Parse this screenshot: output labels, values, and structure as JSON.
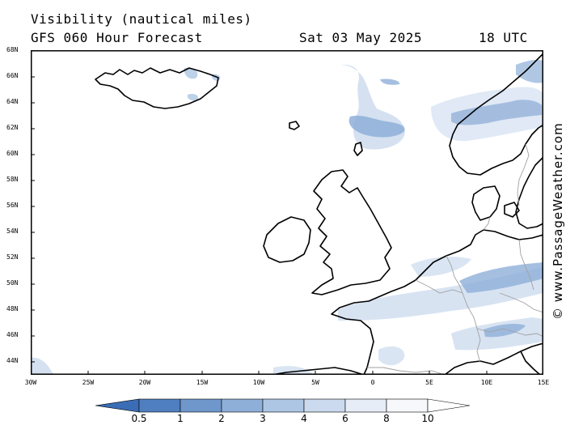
{
  "header": {
    "title": "Visibility (nautical miles)",
    "model": "GFS 060 Hour Forecast",
    "date": "Sat 03 May 2025",
    "time": "18 UTC"
  },
  "axes": {
    "lat_labels": [
      "68N",
      "66N",
      "64N",
      "62N",
      "60N",
      "58N",
      "56N",
      "54N",
      "52N",
      "50N",
      "48N",
      "46N",
      "44N"
    ],
    "lon_labels": [
      "30W",
      "25W",
      "20W",
      "15W",
      "10W",
      "5W",
      "0",
      "5E",
      "10E",
      "15E"
    ]
  },
  "map": {
    "region": {
      "lon_min": -30,
      "lon_max": 15,
      "lat_min": 43,
      "lat_max": 68
    },
    "colors": {
      "coastline": "#000000",
      "border": "#a0a0a0",
      "background": "#ffffff"
    }
  },
  "colorbar": {
    "labels": [
      "0.5",
      "1",
      "2",
      "3",
      "4",
      "6",
      "8",
      "10"
    ],
    "colors": [
      "#3a6db5",
      "#4f7fc0",
      "#6f97cc",
      "#8eafd8",
      "#adc6e4",
      "#cbdaee",
      "#e6edf7",
      "#ffffff"
    ]
  },
  "credit": "© www.PassageWeather.com"
}
